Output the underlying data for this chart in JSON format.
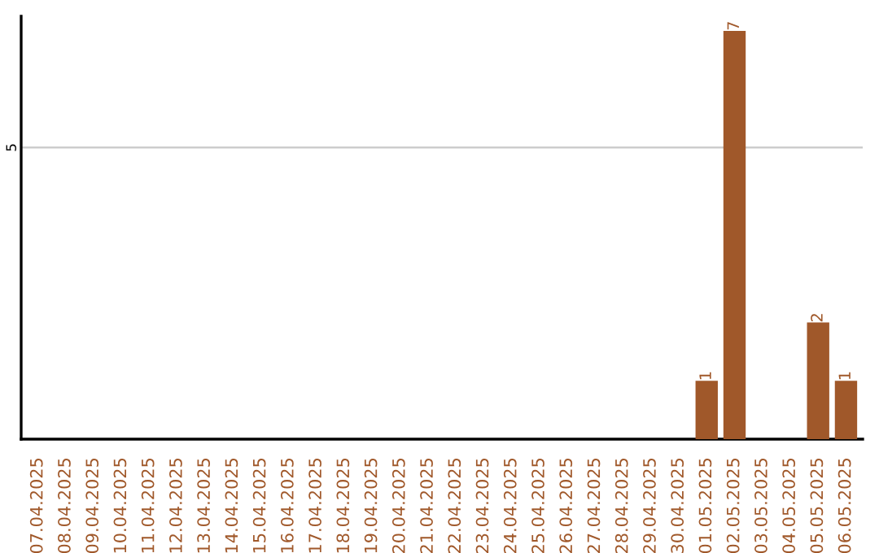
{
  "chart_data": {
    "type": "bar",
    "categories": [
      "07.04.2025",
      "08.04.2025",
      "09.04.2025",
      "10.04.2025",
      "11.04.2025",
      "12.04.2025",
      "13.04.2025",
      "14.04.2025",
      "15.04.2025",
      "16.04.2025",
      "17.04.2025",
      "18.04.2025",
      "19.04.2025",
      "20.04.2025",
      "21.04.2025",
      "22.04.2025",
      "23.04.2025",
      "24.04.2025",
      "25.04.2025",
      "26.04.2025",
      "27.04.2025",
      "28.04.2025",
      "29.04.2025",
      "30.04.2025",
      "01.05.2025",
      "02.05.2025",
      "03.05.2025",
      "04.05.2025",
      "05.05.2025",
      "06.05.2025"
    ],
    "values": [
      null,
      null,
      null,
      null,
      null,
      null,
      null,
      null,
      null,
      null,
      null,
      null,
      null,
      null,
      null,
      null,
      null,
      null,
      null,
      null,
      null,
      null,
      null,
      null,
      1,
      7,
      null,
      null,
      2,
      1
    ],
    "data_labels": true,
    "color": "#a0582a",
    "ylim": [
      0,
      7.25
    ],
    "yticks": [
      5
    ],
    "grid": "y"
  }
}
